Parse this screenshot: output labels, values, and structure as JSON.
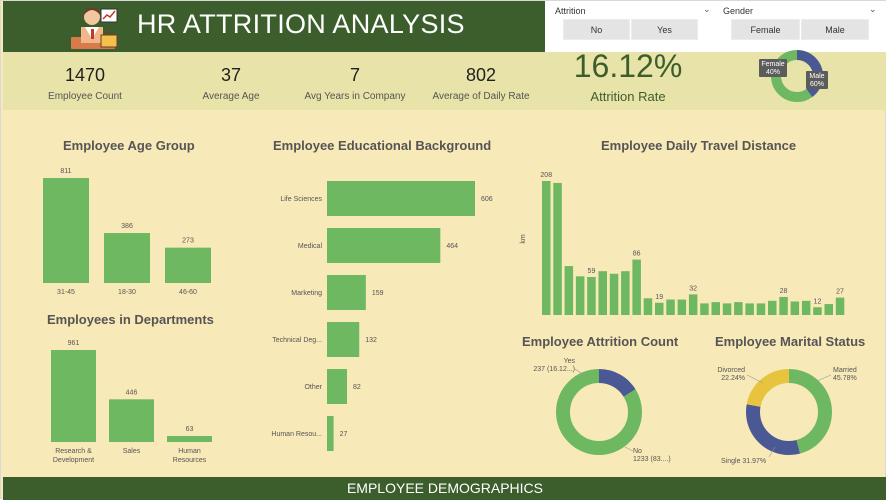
{
  "header": {
    "title": "HR ATTRITION ANALYSIS"
  },
  "filters": {
    "attrition": {
      "title": "Attrition",
      "options": [
        "No",
        "Yes"
      ]
    },
    "gender": {
      "title": "Gender",
      "options": [
        "Female",
        "Male"
      ]
    }
  },
  "kpis": [
    {
      "value": "1470",
      "label": "Employee Count"
    },
    {
      "value": "37",
      "label": "Average Age"
    },
    {
      "value": "7",
      "label": "Avg Years in Company"
    },
    {
      "value": "802",
      "label": "Average of Daily Rate"
    }
  ],
  "attrition_rate": {
    "value": "16.12%",
    "label": "Attrition Rate"
  },
  "footer": {
    "label": "EMPLOYEE DEMOGRAPHICS"
  },
  "colors": {
    "green": "#6db860",
    "dark_green": "#3c5e2c",
    "navy": "#4a5894",
    "yellow": "#e8c33e",
    "background": "#f8e9b8"
  },
  "chart_data": [
    {
      "id": "gender",
      "type": "pie",
      "categories": [
        "Female",
        "Male"
      ],
      "values": [
        40,
        60
      ],
      "labels": [
        "Female\n40%",
        "Male\n60%"
      ]
    },
    {
      "id": "age",
      "type": "bar",
      "title": "Employee Age Group",
      "categories": [
        "31-45",
        "18-30",
        "46-60"
      ],
      "values": [
        811,
        386,
        273
      ]
    },
    {
      "id": "departments",
      "type": "bar",
      "title": "Employees in Departments",
      "categories": [
        "Research & Development",
        "Sales",
        "Human Resources"
      ],
      "values": [
        961,
        446,
        63
      ]
    },
    {
      "id": "education",
      "type": "bar",
      "orientation": "horizontal",
      "title": "Employee Educational Background",
      "categories": [
        "Life Sciences",
        "Medical",
        "Marketing",
        "Technical Deg...",
        "Other",
        "Human Resou..."
      ],
      "values": [
        606,
        464,
        159,
        132,
        82,
        27
      ]
    },
    {
      "id": "distance",
      "type": "bar",
      "title": "Employee Daily Travel Distance",
      "ylabel": "km",
      "values": [
        208,
        205,
        76,
        60,
        59,
        68,
        64,
        68,
        86,
        26,
        19,
        24,
        24,
        32,
        18,
        20,
        18,
        20,
        18,
        18,
        22,
        28,
        21,
        22,
        12,
        17,
        27
      ],
      "data_labels": {
        "0": "208",
        "4": "59",
        "8": "86",
        "10": "19",
        "13": "32",
        "21": "28",
        "24": "12",
        "26": "27"
      }
    },
    {
      "id": "attrition_count",
      "type": "pie",
      "title": "Employee Attrition Count",
      "categories": [
        "Yes",
        "No"
      ],
      "values": [
        237,
        1233
      ],
      "labels": [
        "Yes\n237 (16.12...)",
        "No\n1233 (83....)"
      ]
    },
    {
      "id": "marital",
      "type": "pie",
      "title": "Employee Marital Status",
      "categories": [
        "Married",
        "Single",
        "Divorced"
      ],
      "values": [
        45.78,
        31.97,
        22.24
      ],
      "labels": [
        "Married\n45.78%",
        "Single 31.97%",
        "Divorced\n22.24%"
      ]
    }
  ]
}
